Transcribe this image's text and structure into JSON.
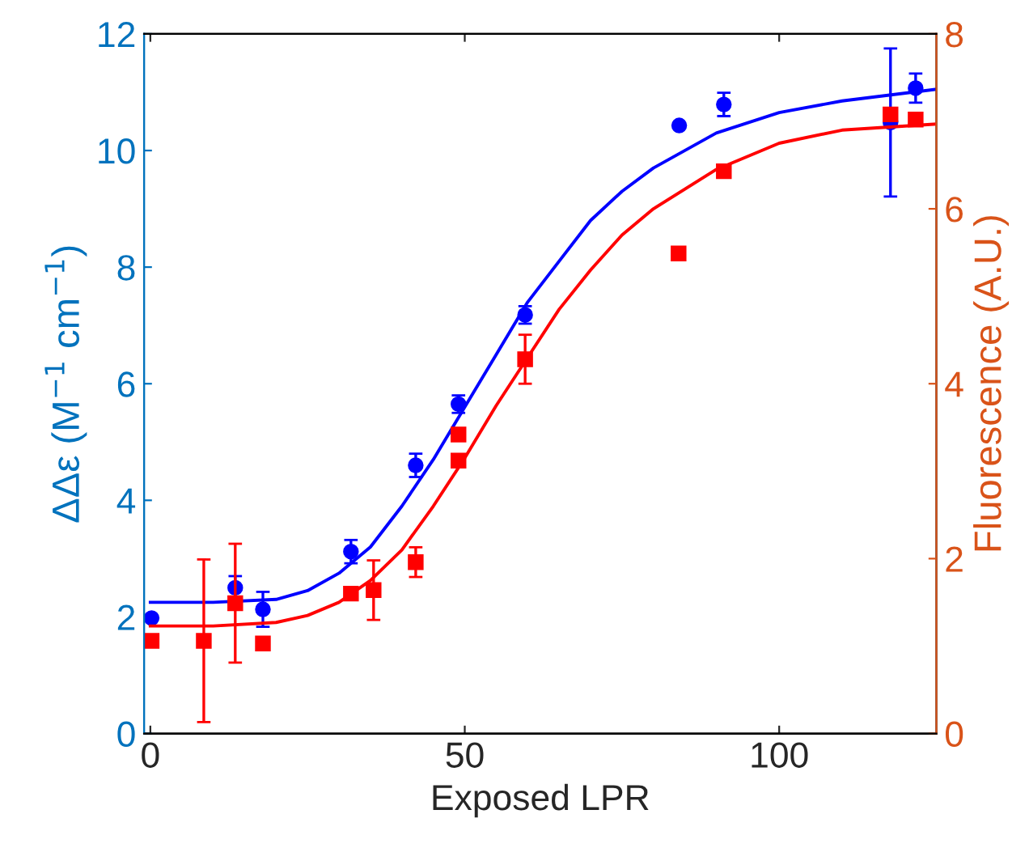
{
  "chart_data": {
    "type": "scatter",
    "xlabel": "Exposed LPR",
    "ylabel": "ΔΔε (M$^{−1}$ cm$^{−1}$)",
    "y2label": "Fluorescence (A.U.)",
    "xlim": [
      -1,
      125
    ],
    "xticks": [
      0,
      50,
      100
    ],
    "ylim": [
      0,
      12
    ],
    "yticks": [
      0,
      2,
      4,
      6,
      8,
      10,
      12
    ],
    "y2lim": [
      0,
      8
    ],
    "y2ticks": [
      0,
      2,
      4,
      6,
      8
    ],
    "grid": false,
    "legend": false,
    "series": [
      {
        "marker": "circle",
        "color": "#0000ff",
        "x": [
          0.2,
          13.5,
          17.9,
          31.9,
          42.2,
          49.0,
          59.6,
          84.1,
          91.2,
          117.7,
          121.7
        ],
        "values": [
          1.98,
          2.5,
          2.13,
          3.12,
          4.6,
          5.65,
          7.18,
          10.43,
          10.79,
          10.48,
          11.07
        ],
        "errors": [
          null,
          0.2,
          0.3,
          0.2,
          0.2,
          0.15,
          0.15,
          null,
          0.2,
          1.27,
          0.25
        ]
      },
      {
        "type": "line",
        "marker": "none",
        "line_style": "solid",
        "color": "#0000ff",
        "x": [
          0,
          10,
          20,
          25,
          30,
          35,
          40,
          45,
          50,
          55,
          60,
          65,
          70,
          75,
          80,
          90,
          100,
          110,
          125
        ],
        "values": [
          2.25,
          2.25,
          2.3,
          2.45,
          2.75,
          3.2,
          3.9,
          4.7,
          5.6,
          6.5,
          7.4,
          8.1,
          8.8,
          9.3,
          9.7,
          10.3,
          10.65,
          10.85,
          11.05
        ]
      },
      {
        "axis": "y2",
        "marker": "square",
        "color": "#ff0000",
        "x": [
          0.2,
          8.5,
          13.5,
          17.9,
          31.9,
          35.5,
          42.2,
          49.0,
          49.0,
          59.6,
          84.0,
          91.2,
          117.7,
          121.7
        ],
        "values": [
          1.06,
          1.06,
          1.49,
          1.03,
          1.6,
          1.64,
          1.96,
          3.42,
          3.12,
          4.28,
          5.49,
          6.43,
          7.08,
          7.02
        ],
        "errors": [
          null,
          0.93,
          0.68,
          null,
          null,
          0.34,
          0.17,
          null,
          null,
          0.28,
          null,
          null,
          null,
          null
        ]
      },
      {
        "type": "line",
        "axis": "y2",
        "marker": "none",
        "line_style": "solid",
        "color": "#ff0000",
        "x": [
          0,
          10,
          20,
          25,
          30,
          35,
          40,
          45,
          50,
          55,
          60,
          65,
          70,
          75,
          80,
          90,
          100,
          110,
          125
        ],
        "values": [
          1.23,
          1.23,
          1.27,
          1.35,
          1.5,
          1.75,
          2.1,
          2.6,
          3.15,
          3.75,
          4.3,
          4.85,
          5.3,
          5.7,
          6.0,
          6.45,
          6.75,
          6.9,
          6.97
        ]
      }
    ]
  }
}
